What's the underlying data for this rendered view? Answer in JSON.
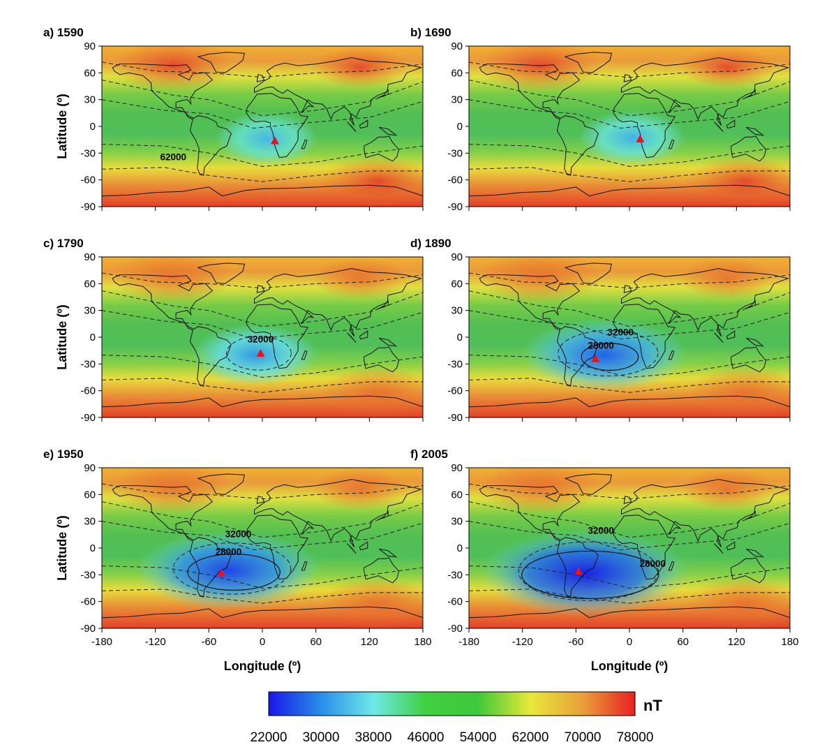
{
  "chart_data": {
    "type": "heatmap",
    "description_quantity": "Geomagnetic field intensity maps",
    "x_axis": {
      "ticks": [
        -180,
        -120,
        -60,
        0,
        60,
        120,
        180
      ],
      "range": [
        -180,
        180
      ],
      "label": "Longitude (º)"
    },
    "y_axis": {
      "ticks": [
        90,
        60,
        30,
        0,
        -30,
        -60,
        -90
      ],
      "range": [
        -90,
        90
      ],
      "label": "Latitude (º)"
    },
    "panels": [
      {
        "label": "a) 1590",
        "marker": {
          "lon": 14,
          "lat": -16
        },
        "anomaly_center": {
          "lon": 5,
          "lat": -14
        },
        "min_value": 33500,
        "contour_labels": [
          {
            "text": "62000",
            "lon": -100,
            "lat": -38
          }
        ]
      },
      {
        "label": "b) 1690",
        "marker": {
          "lon": 12,
          "lat": -14
        },
        "anomaly_center": {
          "lon": 3,
          "lat": -13
        },
        "min_value": 33000,
        "contour_labels": []
      },
      {
        "label": "c) 1790",
        "marker": {
          "lon": -2,
          "lat": -18
        },
        "anomaly_center": {
          "lon": -8,
          "lat": -20
        },
        "min_value": 31000,
        "contour_labels": [
          {
            "text": "32000",
            "lon": -2,
            "lat": -6
          }
        ]
      },
      {
        "label": "d) 1890",
        "marker": {
          "lon": -38,
          "lat": -24
        },
        "anomaly_center": {
          "lon": -28,
          "lat": -20
        },
        "min_value": 27000,
        "contour_labels": [
          {
            "text": "32000",
            "lon": -10,
            "lat": 2
          },
          {
            "text": "28000",
            "lon": -32,
            "lat": -13
          }
        ]
      },
      {
        "label": "e) 1950",
        "marker": {
          "lon": -46,
          "lat": -28
        },
        "anomaly_center": {
          "lon": -38,
          "lat": -25
        },
        "min_value": 25000,
        "contour_labels": [
          {
            "text": "32000",
            "lon": -27,
            "lat": 12
          },
          {
            "text": "28000",
            "lon": -38,
            "lat": -8
          }
        ]
      },
      {
        "label": "f) 2005",
        "marker": {
          "lon": -57,
          "lat": -26
        },
        "anomaly_center": {
          "lon": -50,
          "lat": -28
        },
        "min_value": 22500,
        "contour_labels": [
          {
            "text": "32000",
            "lon": -32,
            "lat": 16
          },
          {
            "text": "28000",
            "lon": 26,
            "lat": -21
          }
        ]
      }
    ],
    "colorbar": {
      "min": 22000,
      "max": 78000,
      "ticks": [
        "22000",
        "30000",
        "38000",
        "46000",
        "54000",
        "62000",
        "70000",
        "78000"
      ],
      "unit": "nT",
      "colors": [
        "#1818e8",
        "#2a8ee8",
        "#6ee8e8",
        "#40d040",
        "#3ec83a",
        "#e8e83a",
        "#e8a03a",
        "#e82020"
      ]
    },
    "marker_color": "#e8141c"
  }
}
